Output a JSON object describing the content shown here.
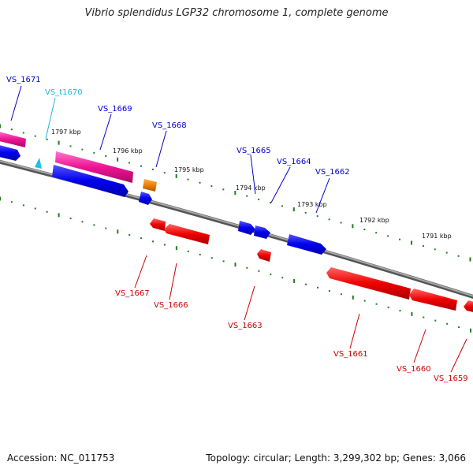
{
  "title": "Vibrio splendidus LGP32 chromosome 1, complete genome",
  "footer": {
    "accession": "Accession: NC_011753",
    "summary": "Topology: circular; Length: 3,299,302 bp; Genes: 3,066"
  },
  "colors": {
    "forward_cds": "#0000ee",
    "reverse_cds": "#ee0000",
    "pink_cds": "#ee1493",
    "orange_cds": "#ee7f00",
    "trna": "#1ec0ee",
    "backbone": "#808080",
    "ticks": "#1f7f1f"
  },
  "kbp_labels": [
    "1797 kbp",
    "1796 kbp",
    "1795 kbp",
    "1794 kbp",
    "1793 kbp",
    "1792 kbp",
    "1791 kbp"
  ],
  "genes": [
    {
      "name": "VS_1671",
      "color": "#0000cc"
    },
    {
      "name": "VS_t1670",
      "color": "#22b5dd"
    },
    {
      "name": "VS_1669",
      "color": "#0000cc"
    },
    {
      "name": "VS_1668",
      "color": "#0000cc"
    },
    {
      "name": "VS_1665",
      "color": "#0000cc"
    },
    {
      "name": "VS_1664",
      "color": "#0000cc"
    },
    {
      "name": "VS_1662",
      "color": "#0000cc"
    },
    {
      "name": "VS_1667",
      "color": "#cc0000"
    },
    {
      "name": "VS_1666",
      "color": "#cc0000"
    },
    {
      "name": "VS_1663",
      "color": "#cc0000"
    },
    {
      "name": "VS_1661",
      "color": "#cc0000"
    },
    {
      "name": "VS_1660",
      "color": "#cc0000"
    },
    {
      "name": "VS_1659",
      "color": "#cc0000"
    }
  ]
}
